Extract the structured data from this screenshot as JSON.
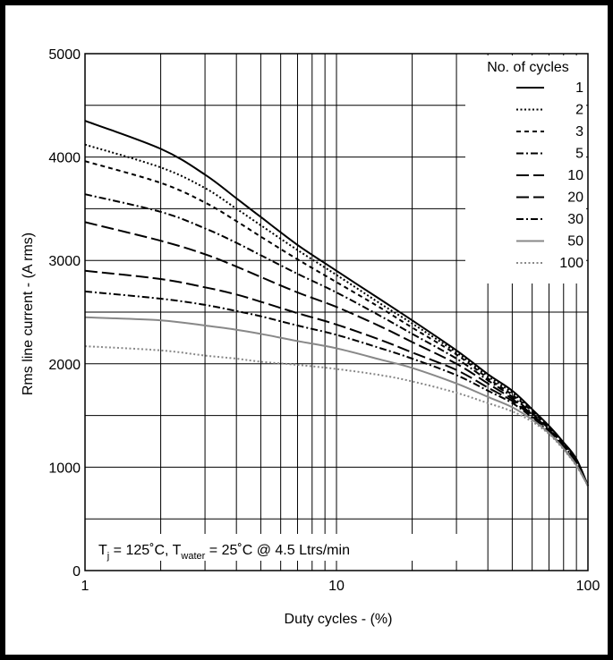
{
  "chart_data": {
    "type": "line",
    "title": "",
    "xlabel": "Duty cycles - (%)",
    "ylabel": "Rms line current - (A rms)",
    "xscale": "log",
    "xlim": [
      1,
      100
    ],
    "ylim": [
      0,
      5000
    ],
    "grid": true,
    "x_ticks": [
      {
        "value": 1,
        "label": "1"
      },
      {
        "value": 10,
        "label": "10"
      },
      {
        "value": 100,
        "label": "100"
      }
    ],
    "y_ticks": [
      {
        "value": 0,
        "label": "0"
      },
      {
        "value": 1000,
        "label": "1000"
      },
      {
        "value": 2000,
        "label": "2000"
      },
      {
        "value": 3000,
        "label": "3000"
      },
      {
        "value": 4000,
        "label": "4000"
      },
      {
        "value": 5000,
        "label": "5000"
      }
    ],
    "legend_title": "No. of cycles",
    "legend_position": "top-right",
    "annotation": {
      "t_main": "T",
      "t_sub": "j",
      "eq1": " = 125˚C, T",
      "water_sub": "water",
      "eq2": " = 25˚C  @  4.5 Ltrs/min"
    },
    "series": [
      {
        "name": "1",
        "color": "#000000",
        "dash": "solid",
        "points": [
          [
            1,
            4350
          ],
          [
            2,
            4080
          ],
          [
            3,
            3830
          ],
          [
            4,
            3600
          ],
          [
            5,
            3420
          ],
          [
            7,
            3150
          ],
          [
            10,
            2900
          ],
          [
            15,
            2620
          ],
          [
            20,
            2420
          ],
          [
            30,
            2130
          ],
          [
            40,
            1900
          ],
          [
            50,
            1740
          ],
          [
            60,
            1560
          ],
          [
            70,
            1400
          ],
          [
            80,
            1240
          ],
          [
            90,
            1080
          ],
          [
            100,
            820
          ]
        ]
      },
      {
        "name": "2",
        "color": "#000000",
        "dash": "dot",
        "points": [
          [
            1,
            4120
          ],
          [
            2,
            3900
          ],
          [
            3,
            3700
          ],
          [
            4,
            3500
          ],
          [
            5,
            3340
          ],
          [
            7,
            3100
          ],
          [
            10,
            2860
          ],
          [
            15,
            2580
          ],
          [
            20,
            2390
          ],
          [
            30,
            2110
          ],
          [
            40,
            1880
          ],
          [
            50,
            1720
          ],
          [
            60,
            1550
          ],
          [
            70,
            1390
          ],
          [
            80,
            1230
          ],
          [
            90,
            1070
          ],
          [
            100,
            820
          ]
        ]
      },
      {
        "name": "3",
        "color": "#000000",
        "dash": "dash-short",
        "points": [
          [
            1,
            3960
          ],
          [
            2,
            3750
          ],
          [
            3,
            3560
          ],
          [
            4,
            3380
          ],
          [
            5,
            3230
          ],
          [
            7,
            3010
          ],
          [
            10,
            2790
          ],
          [
            15,
            2540
          ],
          [
            20,
            2350
          ],
          [
            30,
            2090
          ],
          [
            40,
            1860
          ],
          [
            50,
            1700
          ],
          [
            60,
            1540
          ],
          [
            70,
            1380
          ],
          [
            80,
            1220
          ],
          [
            90,
            1060
          ],
          [
            100,
            820
          ]
        ]
      },
      {
        "name": "5",
        "color": "#000000",
        "dash": "dash-dot",
        "points": [
          [
            1,
            3640
          ],
          [
            2,
            3470
          ],
          [
            3,
            3310
          ],
          [
            4,
            3170
          ],
          [
            5,
            3050
          ],
          [
            7,
            2870
          ],
          [
            10,
            2690
          ],
          [
            15,
            2460
          ],
          [
            20,
            2290
          ],
          [
            30,
            2050
          ],
          [
            40,
            1840
          ],
          [
            50,
            1680
          ],
          [
            60,
            1520
          ],
          [
            70,
            1370
          ],
          [
            80,
            1210
          ],
          [
            90,
            1050
          ],
          [
            100,
            820
          ]
        ]
      },
      {
        "name": "10",
        "color": "#000000",
        "dash": "dash-long",
        "points": [
          [
            1,
            3370
          ],
          [
            2,
            3190
          ],
          [
            3,
            3060
          ],
          [
            4,
            2940
          ],
          [
            5,
            2840
          ],
          [
            7,
            2690
          ],
          [
            10,
            2550
          ],
          [
            15,
            2360
          ],
          [
            20,
            2210
          ],
          [
            30,
            2000
          ],
          [
            40,
            1810
          ],
          [
            50,
            1660
          ],
          [
            60,
            1510
          ],
          [
            70,
            1360
          ],
          [
            80,
            1200
          ],
          [
            90,
            1040
          ],
          [
            100,
            820
          ]
        ]
      },
      {
        "name": "20",
        "color": "#000000",
        "dash": "dash-long",
        "points": [
          [
            1,
            2900
          ],
          [
            2,
            2820
          ],
          [
            3,
            2740
          ],
          [
            4,
            2670
          ],
          [
            5,
            2600
          ],
          [
            7,
            2490
          ],
          [
            10,
            2380
          ],
          [
            15,
            2230
          ],
          [
            20,
            2110
          ],
          [
            30,
            1940
          ],
          [
            40,
            1770
          ],
          [
            50,
            1640
          ],
          [
            60,
            1490
          ],
          [
            70,
            1350
          ],
          [
            80,
            1190
          ],
          [
            90,
            1030
          ],
          [
            100,
            820
          ]
        ]
      },
      {
        "name": "30",
        "color": "#000000",
        "dash": "dash-dot",
        "points": [
          [
            1,
            2700
          ],
          [
            2,
            2630
          ],
          [
            3,
            2570
          ],
          [
            4,
            2510
          ],
          [
            5,
            2460
          ],
          [
            7,
            2370
          ],
          [
            10,
            2280
          ],
          [
            15,
            2150
          ],
          [
            20,
            2050
          ],
          [
            30,
            1890
          ],
          [
            40,
            1740
          ],
          [
            50,
            1620
          ],
          [
            60,
            1480
          ],
          [
            70,
            1340
          ],
          [
            80,
            1180
          ],
          [
            90,
            1020
          ],
          [
            100,
            820
          ]
        ]
      },
      {
        "name": "50",
        "color": "#888888",
        "dash": "solid",
        "points": [
          [
            1,
            2450
          ],
          [
            2,
            2420
          ],
          [
            3,
            2370
          ],
          [
            4,
            2330
          ],
          [
            5,
            2290
          ],
          [
            7,
            2220
          ],
          [
            10,
            2150
          ],
          [
            15,
            2040
          ],
          [
            20,
            1960
          ],
          [
            30,
            1810
          ],
          [
            40,
            1680
          ],
          [
            50,
            1580
          ],
          [
            60,
            1460
          ],
          [
            70,
            1330
          ],
          [
            80,
            1180
          ],
          [
            90,
            1020
          ],
          [
            100,
            820
          ]
        ]
      },
      {
        "name": "100",
        "color": "#888888",
        "dash": "dot",
        "points": [
          [
            1,
            2170
          ],
          [
            2,
            2130
          ],
          [
            3,
            2080
          ],
          [
            4,
            2050
          ],
          [
            5,
            2020
          ],
          [
            7,
            1990
          ],
          [
            10,
            1950
          ],
          [
            15,
            1890
          ],
          [
            20,
            1830
          ],
          [
            30,
            1720
          ],
          [
            40,
            1620
          ],
          [
            50,
            1540
          ],
          [
            60,
            1440
          ],
          [
            70,
            1320
          ],
          [
            80,
            1170
          ],
          [
            90,
            1010
          ],
          [
            100,
            820
          ]
        ]
      }
    ]
  }
}
